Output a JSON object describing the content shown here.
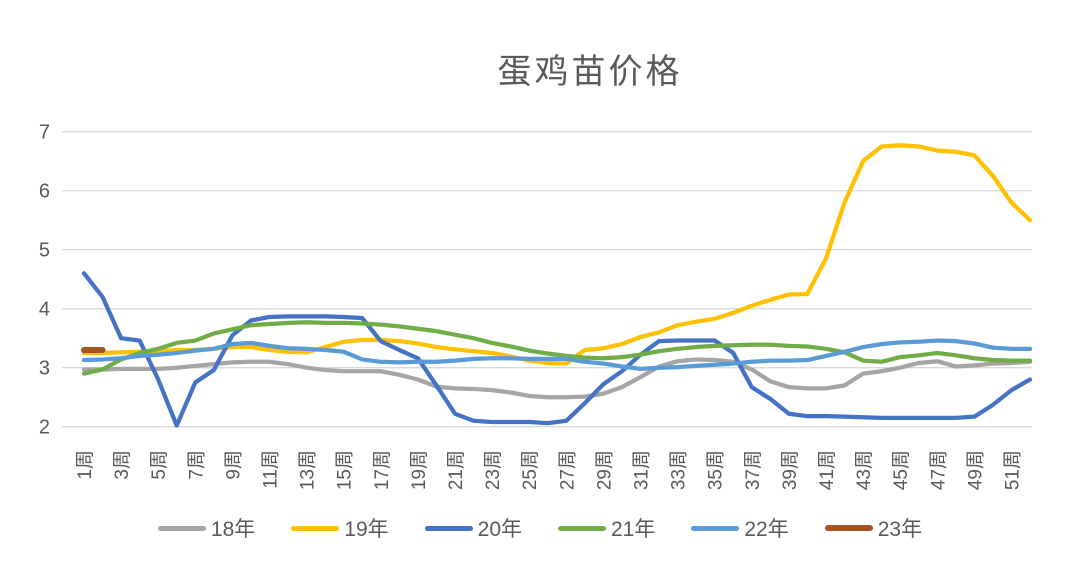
{
  "chart_data": {
    "type": "line",
    "title": "蛋鸡苗价格",
    "n_weeks": 52,
    "x_unit": "周",
    "ylim": [
      2,
      7
    ],
    "yticks": [
      2,
      3,
      4,
      5,
      6,
      7
    ],
    "xtick_labels": [
      "1周",
      "3周",
      "5周",
      "7周",
      "9周",
      "11周",
      "13周",
      "15周",
      "17周",
      "19周",
      "21周",
      "23周",
      "25周",
      "27周",
      "29周",
      "31周",
      "33周",
      "35周",
      "37周",
      "39周",
      "41周",
      "43周",
      "45周",
      "47周",
      "49周",
      "51周"
    ],
    "grid": "horizontal",
    "legend_position": "bottom",
    "colors": {
      "text": "#595959",
      "grid": "#D9D9D9",
      "background": "#FFFFFF"
    },
    "series": [
      {
        "name": "18年",
        "color": "#A5A5A5",
        "values": [
          2.97,
          2.97,
          2.98,
          2.98,
          2.98,
          3.0,
          3.03,
          3.06,
          3.09,
          3.1,
          3.1,
          3.06,
          3.0,
          2.96,
          2.94,
          2.94,
          2.94,
          2.88,
          2.8,
          2.68,
          2.65,
          2.64,
          2.62,
          2.58,
          2.52,
          2.5,
          2.5,
          2.51,
          2.56,
          2.67,
          2.84,
          3.02,
          3.11,
          3.14,
          3.13,
          3.1,
          2.97,
          2.77,
          2.67,
          2.65,
          2.65,
          2.7,
          2.9,
          2.94,
          3.0,
          3.08,
          3.11,
          3.02,
          3.04,
          3.07,
          3.08,
          3.1
        ]
      },
      {
        "name": "19年",
        "color": "#FFC000",
        "values": [
          3.25,
          3.25,
          3.26,
          3.27,
          3.28,
          3.3,
          3.3,
          3.32,
          3.35,
          3.35,
          3.3,
          3.27,
          3.26,
          3.35,
          3.44,
          3.47,
          3.47,
          3.45,
          3.41,
          3.35,
          3.31,
          3.28,
          3.25,
          3.19,
          3.12,
          3.08,
          3.07,
          3.3,
          3.33,
          3.4,
          3.52,
          3.6,
          3.72,
          3.78,
          3.83,
          3.93,
          4.05,
          4.15,
          4.24,
          4.25,
          4.85,
          5.8,
          6.5,
          6.75,
          6.77,
          6.75,
          6.68,
          6.66,
          6.6,
          6.25,
          5.8,
          5.5
        ]
      },
      {
        "name": "20年",
        "color": "#4472C4",
        "values": [
          4.6,
          4.2,
          3.5,
          3.46,
          2.8,
          2.02,
          2.75,
          2.96,
          3.55,
          3.8,
          3.86,
          3.87,
          3.87,
          3.87,
          3.86,
          3.84,
          3.45,
          3.3,
          3.16,
          2.7,
          2.22,
          2.1,
          2.08,
          2.08,
          2.08,
          2.06,
          2.1,
          2.4,
          2.72,
          2.94,
          3.22,
          3.45,
          3.46,
          3.46,
          3.46,
          3.25,
          2.67,
          2.47,
          2.22,
          2.18,
          2.18,
          2.17,
          2.16,
          2.15,
          2.15,
          2.15,
          2.15,
          2.15,
          2.17,
          2.37,
          2.62,
          2.8
        ]
      },
      {
        "name": "21年",
        "color": "#70AD47",
        "values": [
          2.9,
          2.97,
          3.14,
          3.25,
          3.32,
          3.42,
          3.46,
          3.58,
          3.65,
          3.72,
          3.74,
          3.76,
          3.77,
          3.76,
          3.76,
          3.75,
          3.73,
          3.7,
          3.66,
          3.62,
          3.56,
          3.5,
          3.42,
          3.36,
          3.29,
          3.24,
          3.2,
          3.17,
          3.16,
          3.18,
          3.22,
          3.28,
          3.32,
          3.35,
          3.37,
          3.38,
          3.39,
          3.39,
          3.37,
          3.36,
          3.32,
          3.26,
          3.12,
          3.1,
          3.18,
          3.21,
          3.25,
          3.21,
          3.16,
          3.13,
          3.12,
          3.12
        ]
      },
      {
        "name": "22年",
        "color": "#5B9BD5",
        "values": [
          3.13,
          3.14,
          3.16,
          3.2,
          3.22,
          3.25,
          3.29,
          3.32,
          3.4,
          3.42,
          3.37,
          3.33,
          3.32,
          3.3,
          3.27,
          3.14,
          3.1,
          3.09,
          3.1,
          3.1,
          3.12,
          3.15,
          3.16,
          3.16,
          3.15,
          3.15,
          3.15,
          3.1,
          3.07,
          3.02,
          2.98,
          3.0,
          3.01,
          3.03,
          3.05,
          3.07,
          3.1,
          3.12,
          3.12,
          3.13,
          3.2,
          3.27,
          3.35,
          3.4,
          3.43,
          3.44,
          3.46,
          3.45,
          3.41,
          3.34,
          3.32,
          3.32
        ]
      },
      {
        "name": "23年",
        "color": "#A5541E",
        "values": [
          3.3,
          3.3
        ]
      }
    ]
  }
}
